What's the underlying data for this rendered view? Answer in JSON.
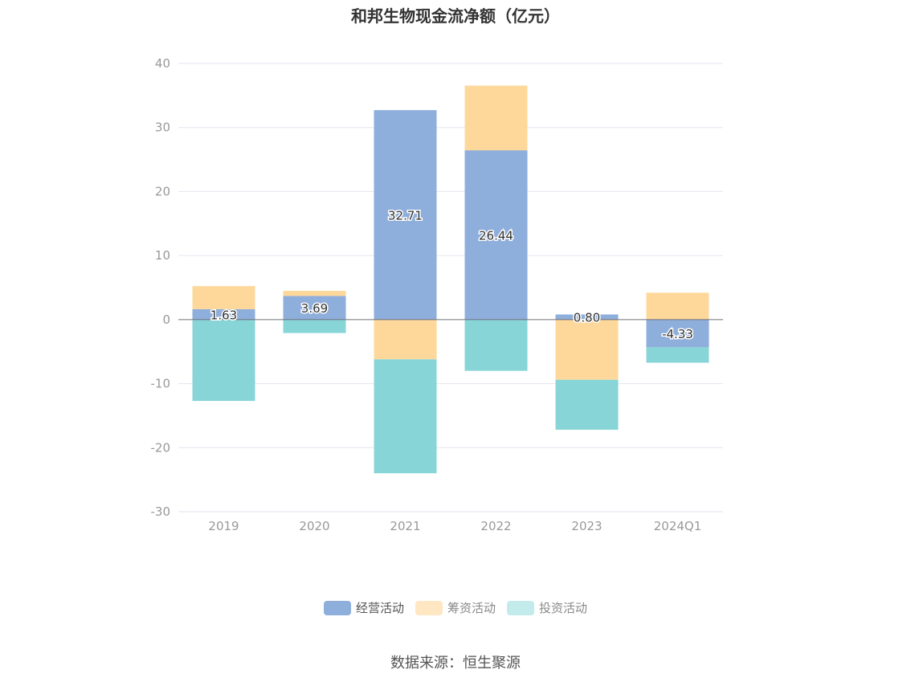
{
  "chart_data": {
    "type": "bar",
    "stacked": true,
    "title": "和邦生物现金流净额（亿元）",
    "categories": [
      "2019",
      "2020",
      "2021",
      "2022",
      "2023",
      "2024Q1"
    ],
    "series": [
      {
        "name": "经营活动",
        "color": "#8eaedb",
        "values": [
          1.63,
          3.69,
          32.71,
          26.44,
          0.8,
          -4.33
        ]
      },
      {
        "name": "筹资活动",
        "color": "#fed89b",
        "values": [
          3.6,
          0.8,
          -6.2,
          10.1,
          -9.4,
          4.2
        ]
      },
      {
        "name": "投资活动",
        "color": "#88d5d8",
        "values": [
          -12.7,
          -2.1,
          -17.8,
          -8.0,
          -7.8,
          -2.4
        ]
      }
    ],
    "data_labels": [
      "1.63",
      "3.69",
      "32.71",
      "26.44",
      "0.80",
      "-4.33"
    ],
    "yticks": [
      "40",
      "30",
      "20",
      "10",
      "0",
      "-10",
      "-20",
      "-30"
    ],
    "ylim": [
      -30,
      40
    ],
    "grid": true,
    "legend_position": "bottom"
  },
  "source": "数据来源：恒生聚源"
}
